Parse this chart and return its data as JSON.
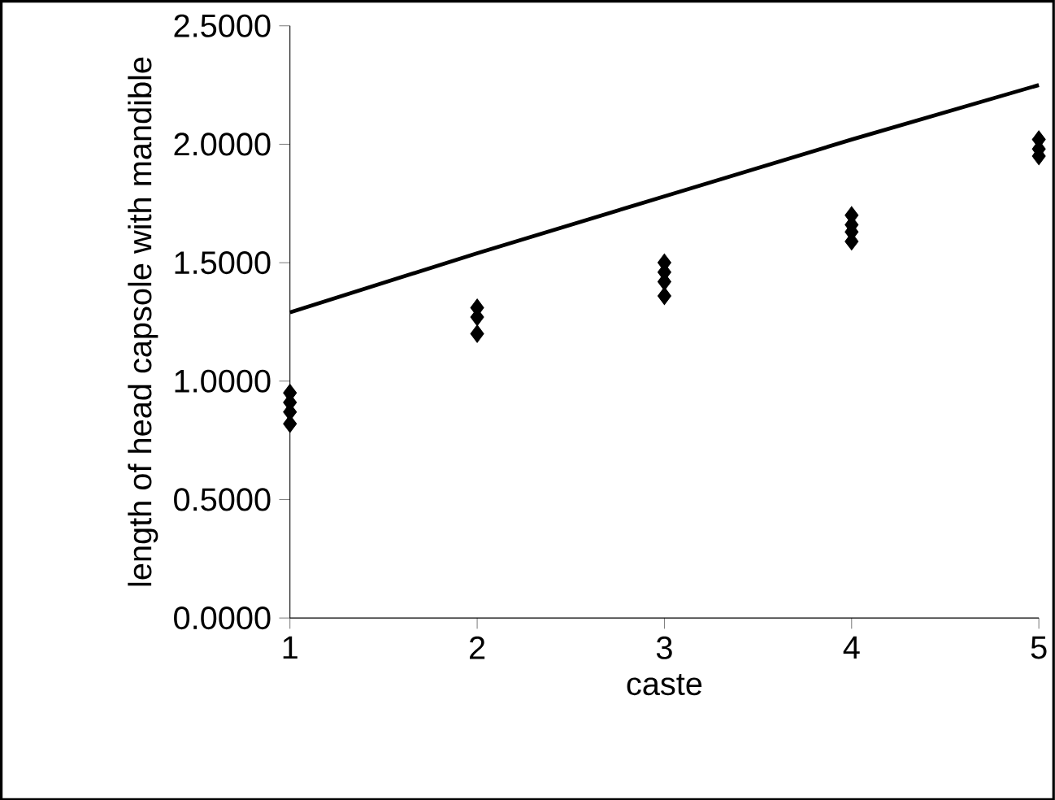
{
  "chart_data": {
    "type": "scatter",
    "xlabel": "caste",
    "ylabel": "length of head capsole with mandible",
    "xlim": [
      1,
      5
    ],
    "xticks": [
      1,
      2,
      3,
      4,
      5
    ],
    "ylim": [
      0,
      2.5
    ],
    "yticks": [
      {
        "value": 0,
        "label": "0.0000"
      },
      {
        "value": 0.5,
        "label": "0.5000"
      },
      {
        "value": 1,
        "label": "1.0000"
      },
      {
        "value": 1.5,
        "label": "1.5000"
      },
      {
        "value": 2,
        "label": "2.0000"
      },
      {
        "value": 2.5,
        "label": "2.5000"
      }
    ],
    "grid": false,
    "series": [
      {
        "marker": "diamond",
        "color": "#000000",
        "x": [
          1,
          1,
          1,
          1,
          2,
          2,
          2,
          3,
          3,
          3,
          3,
          4,
          4,
          4,
          4,
          5,
          5,
          5
        ],
        "values": [
          0.95,
          0.91,
          0.87,
          0.82,
          1.31,
          1.27,
          1.2,
          1.5,
          1.46,
          1.42,
          1.36,
          1.7,
          1.66,
          1.63,
          1.59,
          2.02,
          1.98,
          1.95
        ]
      },
      {
        "type": "line",
        "marker": "none",
        "line_style": "solid",
        "color": "#000000",
        "x": [
          1,
          2,
          3,
          4,
          5
        ],
        "values": [
          1.29,
          1.54,
          1.78,
          2.02,
          2.25
        ]
      }
    ]
  }
}
